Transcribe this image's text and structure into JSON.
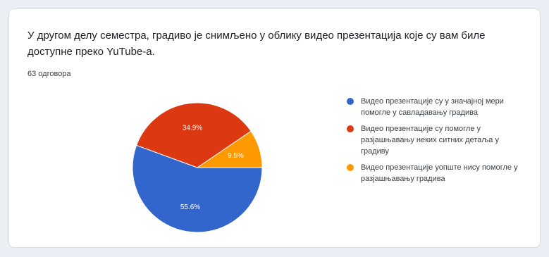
{
  "card": {
    "question": "У другом делу семестра, градиво је снимљено у облику видео презентација које су вам биле доступне преко YuTube-a.",
    "responses": "63 одговора"
  },
  "chart_data": {
    "type": "pie",
    "title": "",
    "slices": [
      {
        "label": "Видео презентације су у значајној мери помогле у савладавању градива",
        "value": 55.6,
        "display": "55.6%",
        "color": "#3366cc"
      },
      {
        "label": "Видео презентације су помогле у разјашњавању неких ситних детаља у градиву",
        "value": 34.9,
        "display": "34.9%",
        "color": "#dc3912"
      },
      {
        "label": "Видео презентације уопште нису помогле у разјашњавању градива",
        "value": 9.5,
        "display": "9.5%",
        "color": "#ff9900"
      }
    ],
    "legend_position": "right"
  }
}
